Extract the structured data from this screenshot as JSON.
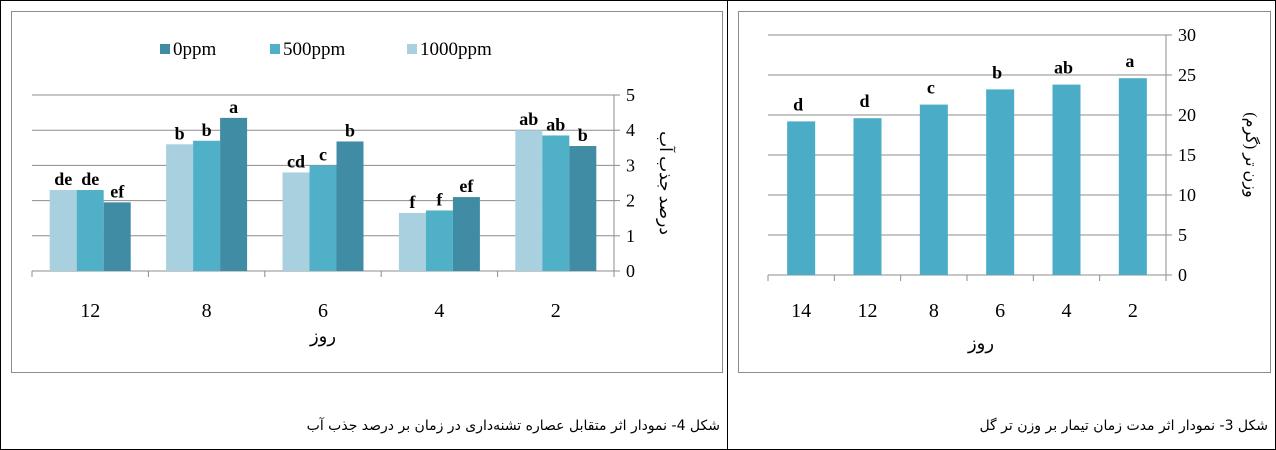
{
  "captions": {
    "left": "شکل 4- نمودار اثر متقابل عصاره تشنه‌داری در زمان بر درصد جذب آب",
    "right": "شکل 3- نمودار اثر مدت زمان تیمار بر وزن تر گل"
  },
  "chart_data": [
    {
      "type": "bar",
      "title": "",
      "xlabel": "روز",
      "ylabel": "درصد جذب آب",
      "ylim": [
        0,
        5
      ],
      "yticks": [
        0,
        1,
        2,
        3,
        4,
        5
      ],
      "grid": true,
      "legend_position": "top",
      "categories": [
        "12",
        "8",
        "6",
        "4",
        "2"
      ],
      "series": [
        {
          "name": "1000ppm",
          "color": "#a9d0de",
          "values": [
            2.3,
            3.6,
            2.8,
            1.65,
            4.0
          ],
          "labels": [
            "de",
            "b",
            "cd",
            "f",
            "ab"
          ]
        },
        {
          "name": "500ppm",
          "color": "#4fb0c8",
          "values": [
            2.3,
            3.7,
            3.0,
            1.72,
            3.85
          ],
          "labels": [
            "de",
            "b",
            "c",
            "f",
            "ab"
          ]
        },
        {
          "name": "0ppm",
          "color": "#3f8ca4",
          "values": [
            1.95,
            4.35,
            3.68,
            2.1,
            3.55
          ],
          "labels": [
            "ef",
            "a",
            "b",
            "ef",
            "b"
          ]
        }
      ],
      "legend_order": [
        "0ppm",
        "500ppm",
        "1000ppm"
      ]
    },
    {
      "type": "bar",
      "title": "",
      "xlabel": "روز",
      "ylabel": "وزن تر (گرم)",
      "ylim": [
        0,
        30
      ],
      "yticks": [
        0,
        5,
        10,
        15,
        20,
        25,
        30
      ],
      "grid": true,
      "categories": [
        "14",
        "12",
        "8",
        "6",
        "4",
        "2"
      ],
      "series": [
        {
          "name": "",
          "color": "#4aacc6",
          "values": [
            19.2,
            19.6,
            21.3,
            23.2,
            23.8,
            24.6
          ],
          "labels": [
            "d",
            "d",
            "c",
            "b",
            "ab",
            "a"
          ]
        }
      ]
    }
  ]
}
